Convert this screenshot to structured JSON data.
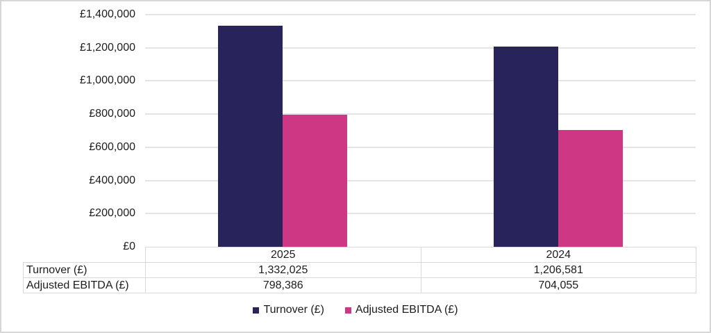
{
  "chart_data": {
    "type": "bar",
    "title": "",
    "categories": [
      "2025",
      "2024"
    ],
    "series": [
      {
        "name": "Turnover (£)",
        "color": "#29235c",
        "values": [
          1332025,
          1206581
        ],
        "display_values": [
          "1,332,025",
          "1,206,581"
        ]
      },
      {
        "name": "Adjusted EBITDA (£)",
        "color": "#ce3784",
        "values": [
          798386,
          704055
        ],
        "display_values": [
          "798,386",
          "704,055"
        ]
      }
    ],
    "xlabel": "",
    "ylabel": "",
    "ylim": [
      0,
      1400000
    ],
    "ytick_interval": 200000,
    "ytick_labels": [
      "£0",
      "£200,000",
      "£400,000",
      "£600,000",
      "£800,000",
      "£1,000,000",
      "£1,200,000",
      "£1,400,000"
    ],
    "grid": true,
    "legend_position": "bottom",
    "data_table_shown": true
  },
  "colors": {
    "turnover": "#29235c",
    "adjusted_ebitda": "#ce3784",
    "gridline": "#e4e4e4",
    "table_border": "#d9d9d9",
    "text": "#1c1c1c",
    "frame_border": "#d6d6d6"
  }
}
